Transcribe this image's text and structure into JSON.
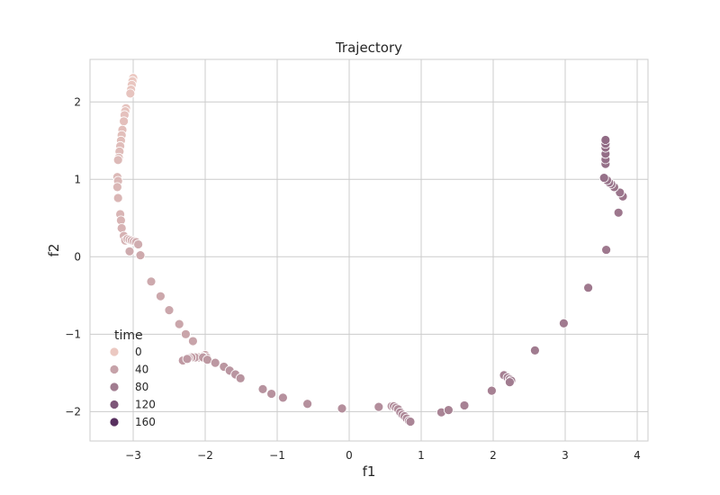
{
  "chart_data": {
    "type": "scatter",
    "title": "Trajectory",
    "xlabel": "f1",
    "ylabel": "f2",
    "xlim": [
      -3.6,
      4.15
    ],
    "ylim": [
      -2.38,
      2.55
    ],
    "x_ticks": [
      -3,
      -2,
      -1,
      0,
      1,
      2,
      3,
      4
    ],
    "y_ticks": [
      2,
      1,
      0,
      -1,
      -2
    ],
    "x_tick_labels": [
      "−3",
      "−2",
      "−1",
      "0",
      "1",
      "2",
      "3",
      "4"
    ],
    "y_tick_labels": [
      "2",
      "1",
      "0",
      "−1",
      "−2"
    ],
    "grid": true,
    "hue": "time",
    "color_range": [
      "#ebc8c1",
      "#4a2256"
    ],
    "hue_range": [
      0,
      175
    ],
    "legend": {
      "title": "time",
      "position": "lower-left",
      "entries": [
        {
          "label": "0",
          "value": 0
        },
        {
          "label": "40",
          "value": 40
        },
        {
          "label": "80",
          "value": 80
        },
        {
          "label": "120",
          "value": 120
        },
        {
          "label": "160",
          "value": 160
        }
      ]
    },
    "points": [
      {
        "x": -3.0,
        "y": 2.31,
        "t": 0
      },
      {
        "x": -3.01,
        "y": 2.27,
        "t": 1
      },
      {
        "x": -3.02,
        "y": 2.22,
        "t": 2
      },
      {
        "x": -3.03,
        "y": 2.16,
        "t": 3
      },
      {
        "x": -3.04,
        "y": 2.11,
        "t": 4
      },
      {
        "x": -3.1,
        "y": 1.92,
        "t": 5
      },
      {
        "x": -3.11,
        "y": 1.88,
        "t": 6
      },
      {
        "x": -3.12,
        "y": 1.83,
        "t": 7
      },
      {
        "x": -3.13,
        "y": 1.75,
        "t": 8
      },
      {
        "x": -3.15,
        "y": 1.64,
        "t": 9
      },
      {
        "x": -3.16,
        "y": 1.57,
        "t": 10
      },
      {
        "x": -3.17,
        "y": 1.5,
        "t": 11
      },
      {
        "x": -3.18,
        "y": 1.43,
        "t": 12
      },
      {
        "x": -3.19,
        "y": 1.36,
        "t": 13
      },
      {
        "x": -3.2,
        "y": 1.28,
        "t": 14
      },
      {
        "x": -3.21,
        "y": 1.25,
        "t": 15
      },
      {
        "x": -3.22,
        "y": 1.03,
        "t": 16
      },
      {
        "x": -3.21,
        "y": 0.98,
        "t": 17
      },
      {
        "x": -3.22,
        "y": 0.9,
        "t": 18
      },
      {
        "x": -3.21,
        "y": 0.76,
        "t": 19
      },
      {
        "x": -3.18,
        "y": 0.55,
        "t": 20
      },
      {
        "x": -3.17,
        "y": 0.47,
        "t": 21
      },
      {
        "x": -3.16,
        "y": 0.37,
        "t": 22
      },
      {
        "x": -3.13,
        "y": 0.27,
        "t": 23
      },
      {
        "x": -3.11,
        "y": 0.21,
        "t": 24
      },
      {
        "x": -3.08,
        "y": 0.23,
        "t": 25
      },
      {
        "x": -3.05,
        "y": 0.22,
        "t": 26
      },
      {
        "x": -3.02,
        "y": 0.21,
        "t": 27
      },
      {
        "x": -2.99,
        "y": 0.2,
        "t": 28
      },
      {
        "x": -2.96,
        "y": 0.19,
        "t": 29
      },
      {
        "x": -2.93,
        "y": 0.16,
        "t": 30
      },
      {
        "x": -3.05,
        "y": 0.07,
        "t": 31
      },
      {
        "x": -2.9,
        "y": 0.02,
        "t": 32
      },
      {
        "x": -2.75,
        "y": -0.32,
        "t": 33
      },
      {
        "x": -2.62,
        "y": -0.51,
        "t": 34
      },
      {
        "x": -2.5,
        "y": -0.69,
        "t": 35
      },
      {
        "x": -2.36,
        "y": -0.87,
        "t": 36
      },
      {
        "x": -2.27,
        "y": -1.0,
        "t": 37
      },
      {
        "x": -2.17,
        "y": -1.09,
        "t": 38
      },
      {
        "x": -2.0,
        "y": -1.27,
        "t": 39
      },
      {
        "x": -1.98,
        "y": -1.3,
        "t": 40
      },
      {
        "x": -2.04,
        "y": -1.29,
        "t": 41
      },
      {
        "x": -2.09,
        "y": -1.3,
        "t": 42
      },
      {
        "x": -2.14,
        "y": -1.3,
        "t": 43
      },
      {
        "x": -2.19,
        "y": -1.3,
        "t": 44
      },
      {
        "x": -2.23,
        "y": -1.31,
        "t": 45
      },
      {
        "x": -2.27,
        "y": -1.33,
        "t": 46
      },
      {
        "x": -2.31,
        "y": -1.34,
        "t": 47
      },
      {
        "x": -2.25,
        "y": -1.32,
        "t": 48
      },
      {
        "x": -2.03,
        "y": -1.3,
        "t": 49
      },
      {
        "x": -1.97,
        "y": -1.33,
        "t": 50
      },
      {
        "x": -1.86,
        "y": -1.37,
        "t": 51
      },
      {
        "x": -1.74,
        "y": -1.42,
        "t": 52
      },
      {
        "x": -1.66,
        "y": -1.47,
        "t": 53
      },
      {
        "x": -1.58,
        "y": -1.52,
        "t": 54
      },
      {
        "x": -1.51,
        "y": -1.57,
        "t": 55
      },
      {
        "x": -1.2,
        "y": -1.71,
        "t": 56
      },
      {
        "x": -1.08,
        "y": -1.77,
        "t": 57
      },
      {
        "x": -0.92,
        "y": -1.82,
        "t": 58
      },
      {
        "x": -0.58,
        "y": -1.9,
        "t": 59
      },
      {
        "x": -0.1,
        "y": -1.96,
        "t": 60
      },
      {
        "x": 0.41,
        "y": -1.94,
        "t": 61
      },
      {
        "x": 0.59,
        "y": -1.93,
        "t": 62
      },
      {
        "x": 0.62,
        "y": -1.93,
        "t": 63
      },
      {
        "x": 0.65,
        "y": -1.95,
        "t": 64
      },
      {
        "x": 0.68,
        "y": -1.97,
        "t": 65
      },
      {
        "x": 0.71,
        "y": -2.01,
        "t": 66
      },
      {
        "x": 0.74,
        "y": -2.04,
        "t": 67
      },
      {
        "x": 0.77,
        "y": -2.06,
        "t": 68
      },
      {
        "x": 0.8,
        "y": -2.09,
        "t": 69
      },
      {
        "x": 0.83,
        "y": -2.12,
        "t": 70
      },
      {
        "x": 0.85,
        "y": -2.13,
        "t": 71
      },
      {
        "x": 1.28,
        "y": -2.01,
        "t": 72
      },
      {
        "x": 1.38,
        "y": -1.98,
        "t": 73
      },
      {
        "x": 1.6,
        "y": -1.92,
        "t": 74
      },
      {
        "x": 1.98,
        "y": -1.73,
        "t": 75
      },
      {
        "x": 2.15,
        "y": -1.53,
        "t": 76
      },
      {
        "x": 2.2,
        "y": -1.56,
        "t": 77
      },
      {
        "x": 2.23,
        "y": -1.58,
        "t": 78
      },
      {
        "x": 2.25,
        "y": -1.6,
        "t": 79
      },
      {
        "x": 2.23,
        "y": -1.62,
        "t": 80
      },
      {
        "x": 2.58,
        "y": -1.21,
        "t": 81
      },
      {
        "x": 2.98,
        "y": -0.86,
        "t": 82
      },
      {
        "x": 3.32,
        "y": -0.4,
        "t": 83
      },
      {
        "x": 3.57,
        "y": 0.09,
        "t": 84
      },
      {
        "x": 3.74,
        "y": 0.57,
        "t": 85
      },
      {
        "x": 3.8,
        "y": 0.78,
        "t": 86
      },
      {
        "x": 3.76,
        "y": 0.83,
        "t": 87
      },
      {
        "x": 3.68,
        "y": 0.9,
        "t": 88
      },
      {
        "x": 3.64,
        "y": 0.94,
        "t": 89
      },
      {
        "x": 3.61,
        "y": 0.96,
        "t": 90
      },
      {
        "x": 3.58,
        "y": 0.99,
        "t": 91
      },
      {
        "x": 3.54,
        "y": 1.02,
        "t": 92
      },
      {
        "x": 3.56,
        "y": 1.2,
        "t": 93
      },
      {
        "x": 3.56,
        "y": 1.26,
        "t": 94
      },
      {
        "x": 3.56,
        "y": 1.33,
        "t": 95
      },
      {
        "x": 3.56,
        "y": 1.41,
        "t": 96
      },
      {
        "x": 3.56,
        "y": 1.46,
        "t": 97
      },
      {
        "x": 3.56,
        "y": 1.51,
        "t": 98
      }
    ]
  }
}
